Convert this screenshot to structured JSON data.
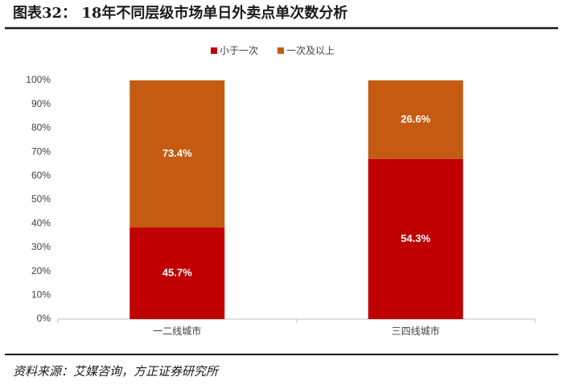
{
  "chart_data": {
    "type": "bar",
    "stack": "percent",
    "title": "图表32：  18年不同层级市场单日外卖点单次数分析",
    "source": "资料来源：艾媒咨询，方正证券研究所",
    "categories": [
      "一二线城市",
      "三四线城市"
    ],
    "series": [
      {
        "name": "小于一次",
        "color": "#c00000",
        "values": [
          45.7,
          54.3
        ],
        "value_labels": [
          "45.7%",
          "54.3%"
        ]
      },
      {
        "name": "一次及以上",
        "color": "#c55a11",
        "values": [
          73.4,
          26.6
        ],
        "value_labels": [
          "73.4%",
          "26.6%"
        ]
      }
    ],
    "ylim": [
      0,
      100
    ],
    "yticks": [
      {
        "value": 0,
        "label": "0%"
      },
      {
        "value": 10,
        "label": "10%"
      },
      {
        "value": 20,
        "label": "20%"
      },
      {
        "value": 30,
        "label": "30%"
      },
      {
        "value": 40,
        "label": "40%"
      },
      {
        "value": 50,
        "label": "50%"
      },
      {
        "value": 60,
        "label": "60%"
      },
      {
        "value": 70,
        "label": "70%"
      },
      {
        "value": 80,
        "label": "80%"
      },
      {
        "value": 90,
        "label": "90%"
      },
      {
        "value": 100,
        "label": "100%"
      }
    ],
    "grid": false,
    "legend": "top"
  }
}
